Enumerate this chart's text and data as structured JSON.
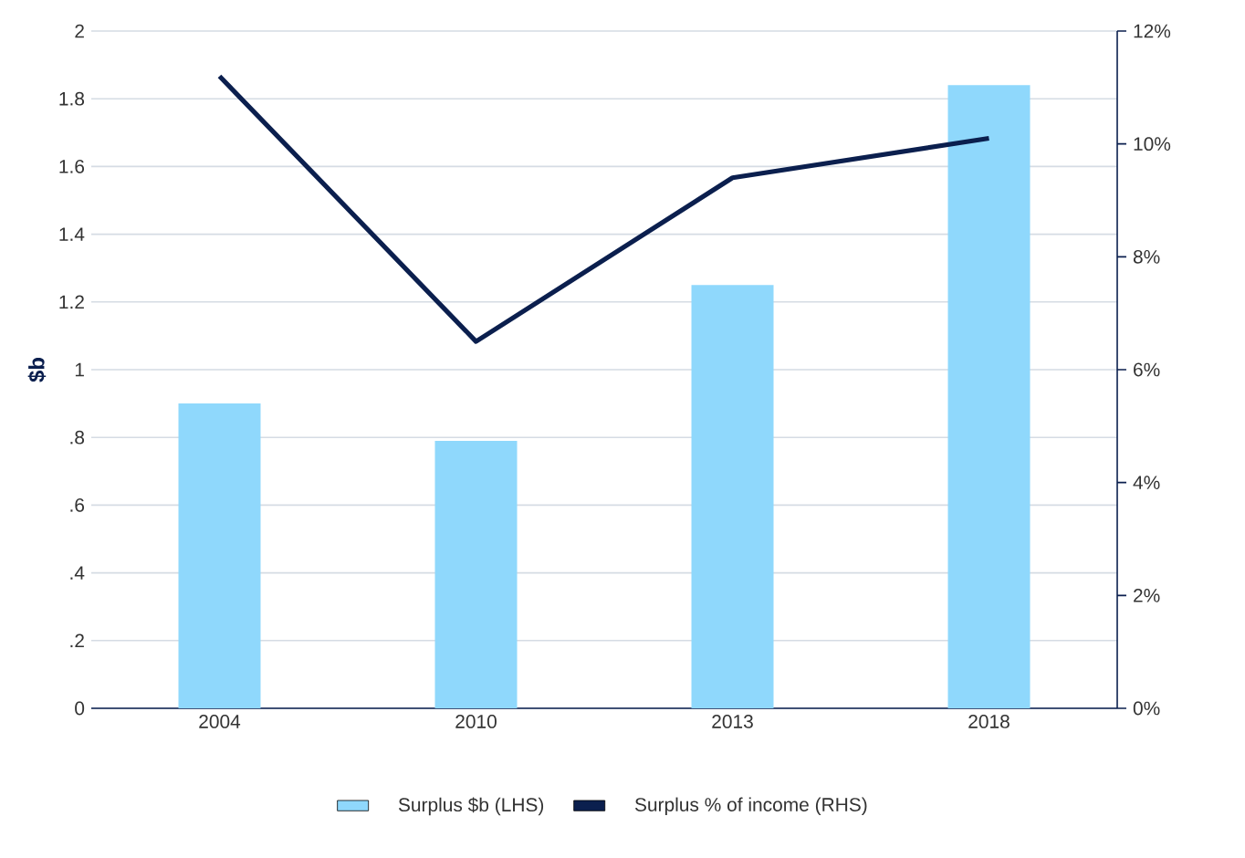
{
  "chart_data": {
    "type": "bar",
    "ylabel": "$b",
    "categories": [
      "2004",
      "2010",
      "2013",
      "2018"
    ],
    "series": [
      {
        "name": "Surplus $b (LHS)",
        "color": "#8fd8fc",
        "values": [
          0.9,
          0.79,
          1.25,
          1.84
        ]
      },
      {
        "name": "Surplus % of income (RHS)",
        "type": "line",
        "axis": "y2",
        "color": "#0b1f4e",
        "values": [
          11.2,
          6.5,
          9.4,
          10.1
        ]
      }
    ],
    "ylim": [
      0,
      2
    ],
    "yticks": [
      0,
      {
        "value": 0.2,
        "label": ".2"
      },
      {
        "value": 0.4,
        "label": ".4"
      },
      {
        "value": 0.6,
        "label": ".6"
      },
      {
        "value": 0.8,
        "label": ".8"
      },
      1,
      1.2,
      1.4,
      1.6,
      1.8,
      2
    ],
    "y2lim": [
      0,
      12
    ],
    "y2ticks": [
      {
        "value": 0,
        "label": "0%"
      },
      {
        "value": 2,
        "label": "2%"
      },
      {
        "value": 4,
        "label": "4%"
      },
      {
        "value": 6,
        "label": "6%"
      },
      {
        "value": 8,
        "label": "8%"
      },
      {
        "value": 10,
        "label": "10%"
      },
      {
        "value": 12,
        "label": "12%"
      }
    ],
    "grid": "y",
    "legend": "bottom"
  }
}
